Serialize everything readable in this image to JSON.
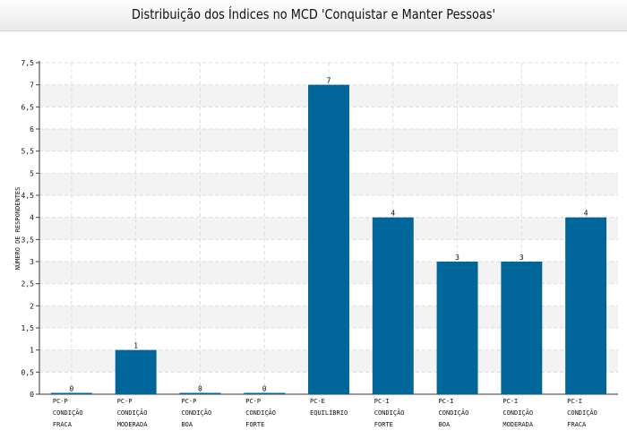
{
  "chart_data": {
    "type": "bar",
    "title": "Distribuição dos Índices no MCD 'Conquistar e Manter Pessoas'",
    "ylabel": "NÚMERO DE RESPONDENTES",
    "xlabel": "",
    "ylim": [
      0,
      7.5
    ],
    "y_ticks": [
      "0",
      "0,5",
      "1",
      "1,5",
      "2",
      "2,5",
      "3",
      "3,5",
      "4",
      "4,5",
      "5",
      "5,5",
      "6",
      "6,5",
      "7",
      "7,5"
    ],
    "grid": true,
    "categories": [
      [
        "PC-P",
        "CONDIÇÃO",
        "FRACA"
      ],
      [
        "PC-P",
        "CONDIÇÃO",
        "MODERADA"
      ],
      [
        "PC-P",
        "CONDIÇÃO",
        "BOA"
      ],
      [
        "PC-P",
        "CONDIÇÃO",
        "FORTE"
      ],
      [
        "PC-E",
        "EQUILÍBRIO"
      ],
      [
        "PC-I",
        "CONDIÇÃO",
        "FORTE"
      ],
      [
        "PC-I",
        "CONDIÇÃO",
        "BOA"
      ],
      [
        "PC-I",
        "CONDIÇÃO",
        "MODERADA"
      ],
      [
        "PC-I",
        "CONDIÇÃO",
        "FRACA"
      ]
    ],
    "values": [
      0,
      1,
      0,
      0,
      7,
      4,
      3,
      3,
      4
    ],
    "data_labels": [
      "0",
      "1",
      "0",
      "0",
      "7",
      "4",
      "3",
      "3",
      "4"
    ],
    "bar_color": "#006699"
  }
}
